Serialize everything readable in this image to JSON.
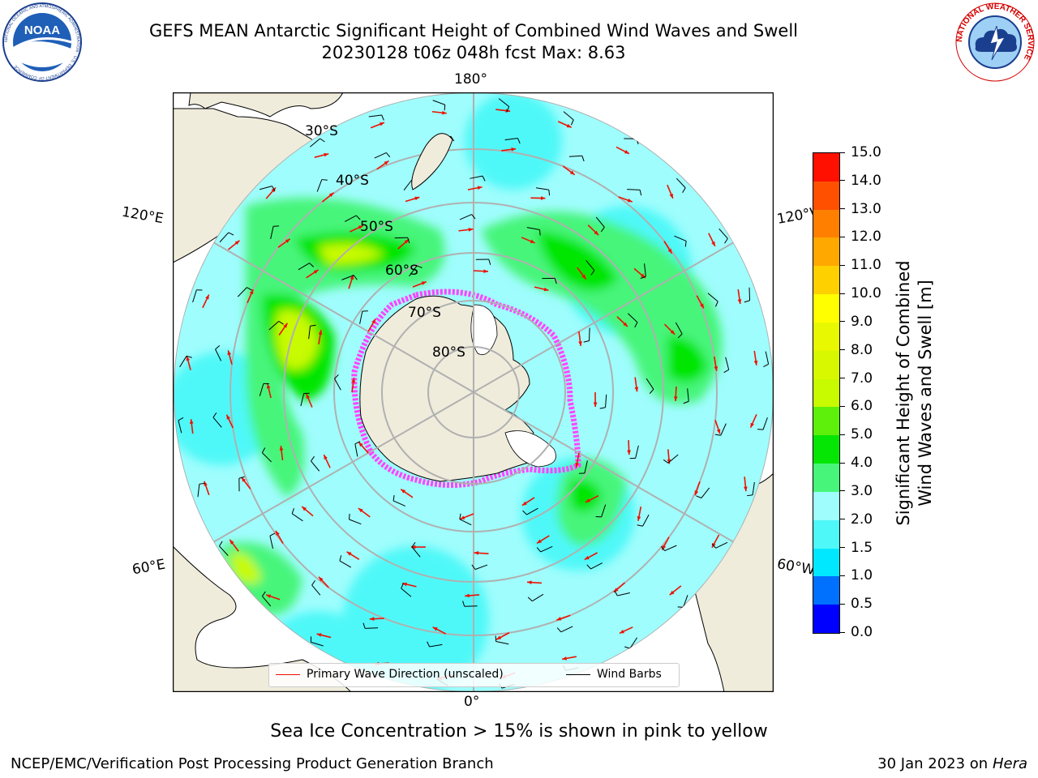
{
  "header": {
    "title_line1": "GEFS MEAN Antarctic Significant Height of Combined Wind Waves and Swell",
    "title_line2": "20230128 t06z 048h fcst   Max: 8.63"
  },
  "logos": {
    "noaa_text": "NOAA",
    "noaa_ring_text": "NATIONAL OCEANIC AND ATMOSPHERIC ADMINISTRATION · U.S. DEPARTMENT OF COMMERCE",
    "nws_ring_text": "NATIONAL WEATHER SERVICE"
  },
  "map": {
    "projection": "south-polar-stereographic",
    "longitude_labels": {
      "top": "180°",
      "bottom": "0°",
      "left_upper": "120°E",
      "left_lower": "60°E",
      "right_upper": "120°W",
      "right_lower": "60°W"
    },
    "latitude_labels": [
      "30°S",
      "40°S",
      "50°S",
      "60°S",
      "70°S",
      "80°S"
    ],
    "colors": {
      "land": "#efecdc",
      "ocean_low": "#9ffdfd",
      "gridline": "#b0b0b0",
      "sea_ice": "#ff44ff",
      "wave_arrow": "#ee1100",
      "wind_barb": "#000000"
    }
  },
  "colorbar": {
    "label_line1": "Significant Height of Combined",
    "label_line2": "Wind Waves and Swell [m]",
    "levels": [
      "0.0",
      "0.5",
      "1.0",
      "1.5",
      "2.0",
      "3.0",
      "4.0",
      "5.0",
      "6.0",
      "7.0",
      "8.0",
      "9.0",
      "10.0",
      "11.0",
      "12.0",
      "13.0",
      "14.0",
      "15.0"
    ],
    "colors": [
      "#0000ff",
      "#0070ff",
      "#00e8ff",
      "#4ff8f8",
      "#9ffdfd",
      "#47f57a",
      "#05e605",
      "#5ef00a",
      "#c8fa00",
      "#d8f800",
      "#e8f800",
      "#ffff00",
      "#ffd000",
      "#ffa800",
      "#ff8000",
      "#ff5000",
      "#ff1000"
    ]
  },
  "legend": {
    "wave_direction": "Primary Wave Direction (unscaled)",
    "wind_barbs": "Wind Barbs"
  },
  "footer": {
    "note": "Sea Ice Concentration > 15% is shown in pink to yellow",
    "credit": "NCEP/EMC/Verification Post Processing Product Generation Branch",
    "date_prefix": "30 Jan 2023 on ",
    "machine": "Hera"
  }
}
